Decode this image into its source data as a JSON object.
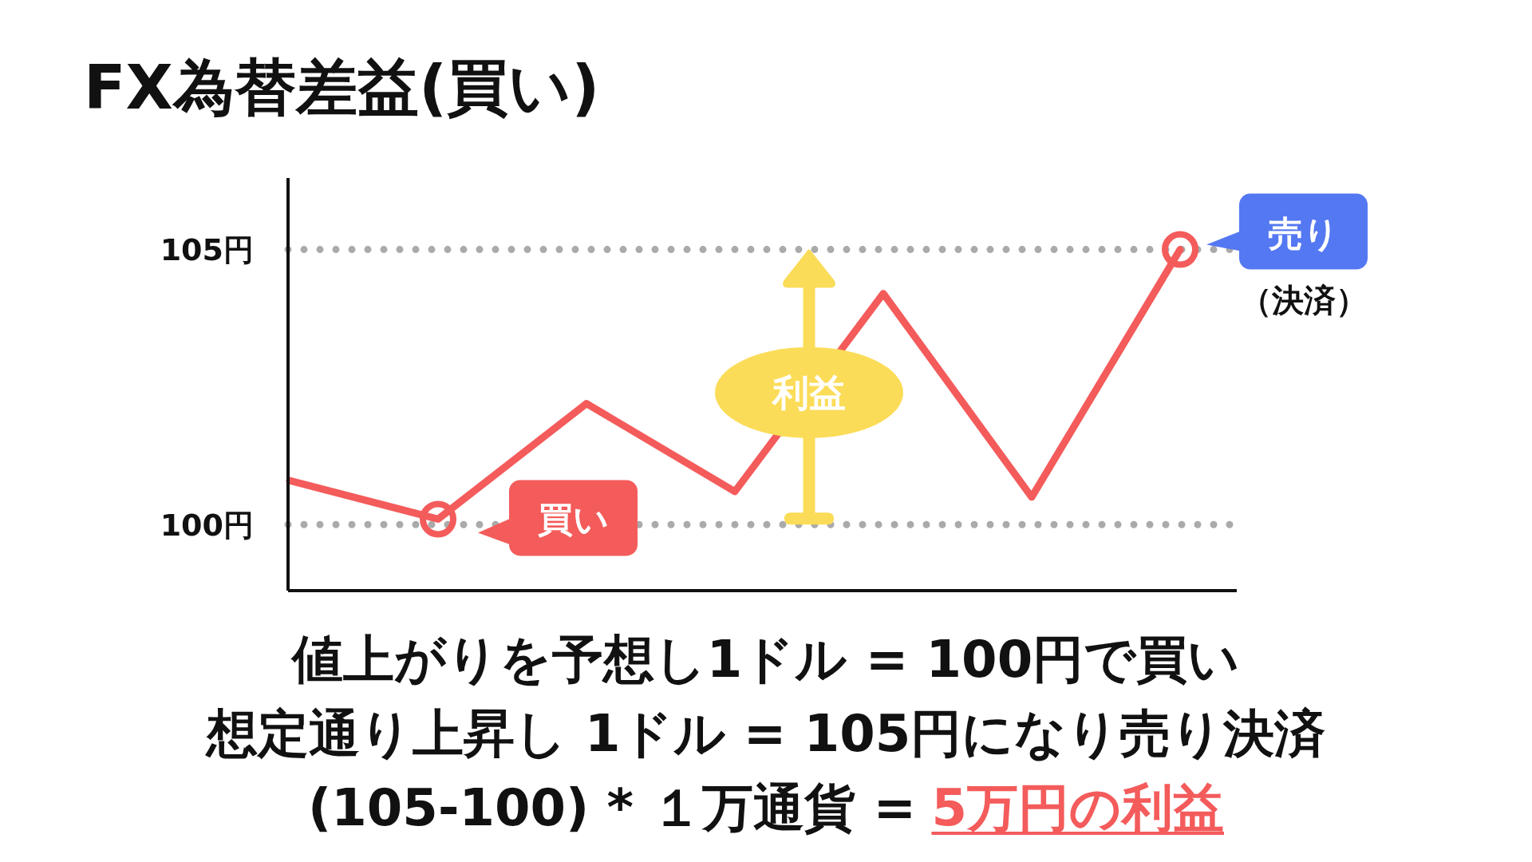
{
  "chart_data": {
    "type": "line",
    "title": "FX為替差益(買い)",
    "categories": [
      null,
      null,
      null,
      null,
      null,
      null,
      null
    ],
    "series": [
      {
        "color": "#f45b5b",
        "values": [
          100.8,
          100.1,
          102.2,
          100.6,
          104.2,
          100.5,
          105
        ]
      },
      {
        "type": "scatter",
        "color": "#f45b5b",
        "marker": "circle",
        "values": [
          null,
          100.1,
          null,
          null,
          null,
          null,
          105
        ]
      }
    ],
    "ylim": [
      98.8,
      106.3
    ],
    "yticks": [
      {
        "value": 100,
        "label": "100円"
      },
      {
        "value": 105,
        "label": "105円"
      }
    ],
    "ref_lines": [
      {
        "axis": "y",
        "value": 100,
        "color": "#aaaaaa",
        "line_style": "dotted"
      },
      {
        "axis": "y",
        "value": 105,
        "color": "#aaaaaa",
        "line_style": "dotted"
      }
    ],
    "tick_labels": "y",
    "annotations": [
      "買い",
      "売り",
      "（決済）",
      "利益",
      "値上がりを予想し1ドル = 100円で買い",
      "想定通り上昇し 1ドル = 105円になり売り決済",
      "(105-100) * １万通貨 =",
      "5万円の利益"
    ]
  }
}
